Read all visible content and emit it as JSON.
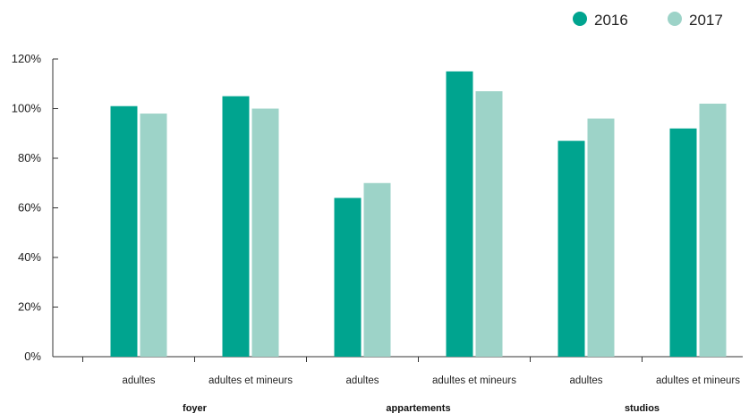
{
  "chart_data": {
    "type": "bar",
    "title": "",
    "xlabel": "",
    "ylabel": "",
    "ylim": [
      0,
      120
    ],
    "y_ticks": [
      "0%",
      "20%",
      "40%",
      "60%",
      "80%",
      "100%",
      "120%"
    ],
    "grid": false,
    "legend_position": "top-right",
    "categories": [
      "adultes",
      "adultes et mineurs",
      "adultes",
      "adultes et mineurs",
      "adultes",
      "adultes et mineurs"
    ],
    "groups": [
      {
        "label": "foyer",
        "span": [
          0,
          1
        ]
      },
      {
        "label": "appartements",
        "span": [
          2,
          3
        ]
      },
      {
        "label": "studios",
        "span": [
          4,
          5
        ]
      }
    ],
    "series": [
      {
        "name": "2016",
        "color": "#00a48f",
        "values": [
          101,
          105,
          64,
          115,
          87,
          92
        ]
      },
      {
        "name": "2017",
        "color": "#9dd3c8",
        "values": [
          98,
          100,
          70,
          107,
          96,
          102
        ]
      }
    ]
  }
}
